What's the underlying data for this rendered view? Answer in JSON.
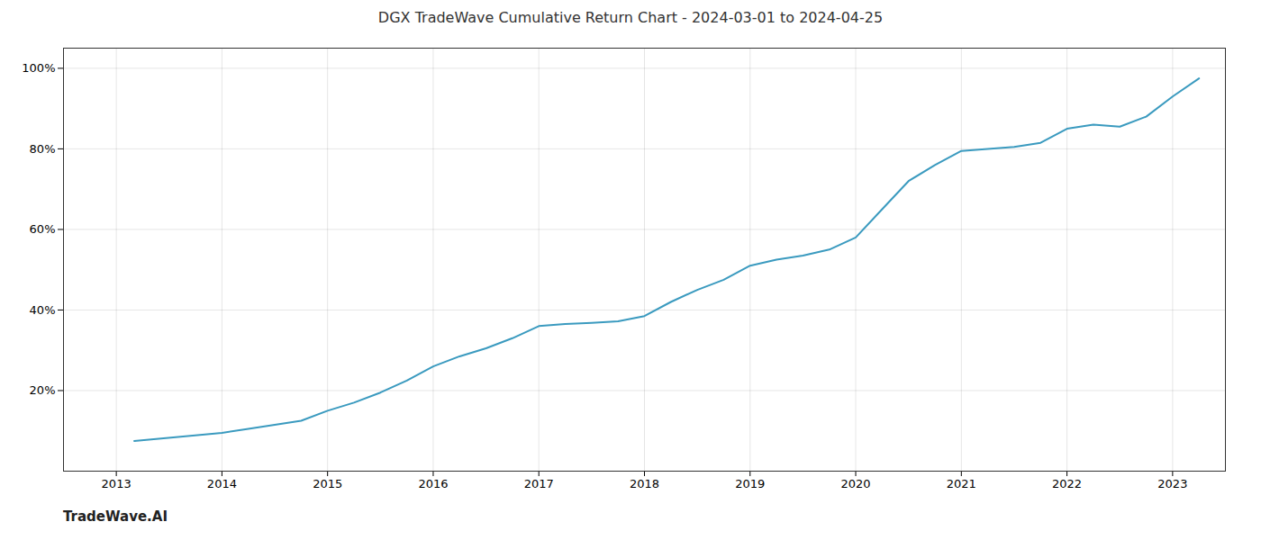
{
  "chart_data": {
    "type": "line",
    "title": "DGX TradeWave Cumulative Return Chart - 2024-03-01 to 2024-04-25",
    "annotations": [
      "TradeWave.AI"
    ],
    "color": "#3a9abf",
    "grid": true,
    "x": [
      2013.17,
      2014.0,
      2014.25,
      2014.5,
      2014.75,
      2015.0,
      2015.25,
      2015.5,
      2015.75,
      2016.0,
      2016.25,
      2016.5,
      2016.75,
      2017.0,
      2017.25,
      2017.5,
      2017.75,
      2018.0,
      2018.25,
      2018.5,
      2018.75,
      2019.0,
      2019.25,
      2019.5,
      2019.75,
      2020.0,
      2020.25,
      2020.5,
      2020.75,
      2021.0,
      2021.25,
      2021.5,
      2021.75,
      2022.0,
      2022.25,
      2022.5,
      2022.75,
      2023.0,
      2023.25
    ],
    "values": [
      7.5,
      9.5,
      10.5,
      11.5,
      12.5,
      15.0,
      17.0,
      19.5,
      22.5,
      26.0,
      28.5,
      30.5,
      33.0,
      36.0,
      36.5,
      36.8,
      37.2,
      38.5,
      42.0,
      45.0,
      47.5,
      51.0,
      52.5,
      53.5,
      55.0,
      58.0,
      65.0,
      72.0,
      76.0,
      79.5,
      80.0,
      80.5,
      81.5,
      85.0,
      86.0,
      85.5,
      88.0,
      93.0,
      97.5
    ],
    "xlim": [
      2012.5,
      2023.5
    ],
    "ylim": [
      0,
      105
    ],
    "xticks": [
      2013,
      2014,
      2015,
      2016,
      2017,
      2018,
      2019,
      2020,
      2021,
      2022,
      2023
    ],
    "yticks": [
      {
        "value": 20,
        "label": "20%"
      },
      {
        "value": 40,
        "label": "40%"
      },
      {
        "value": 60,
        "label": "60%"
      },
      {
        "value": 80,
        "label": "80%"
      },
      {
        "value": 100,
        "label": "100%"
      }
    ]
  }
}
